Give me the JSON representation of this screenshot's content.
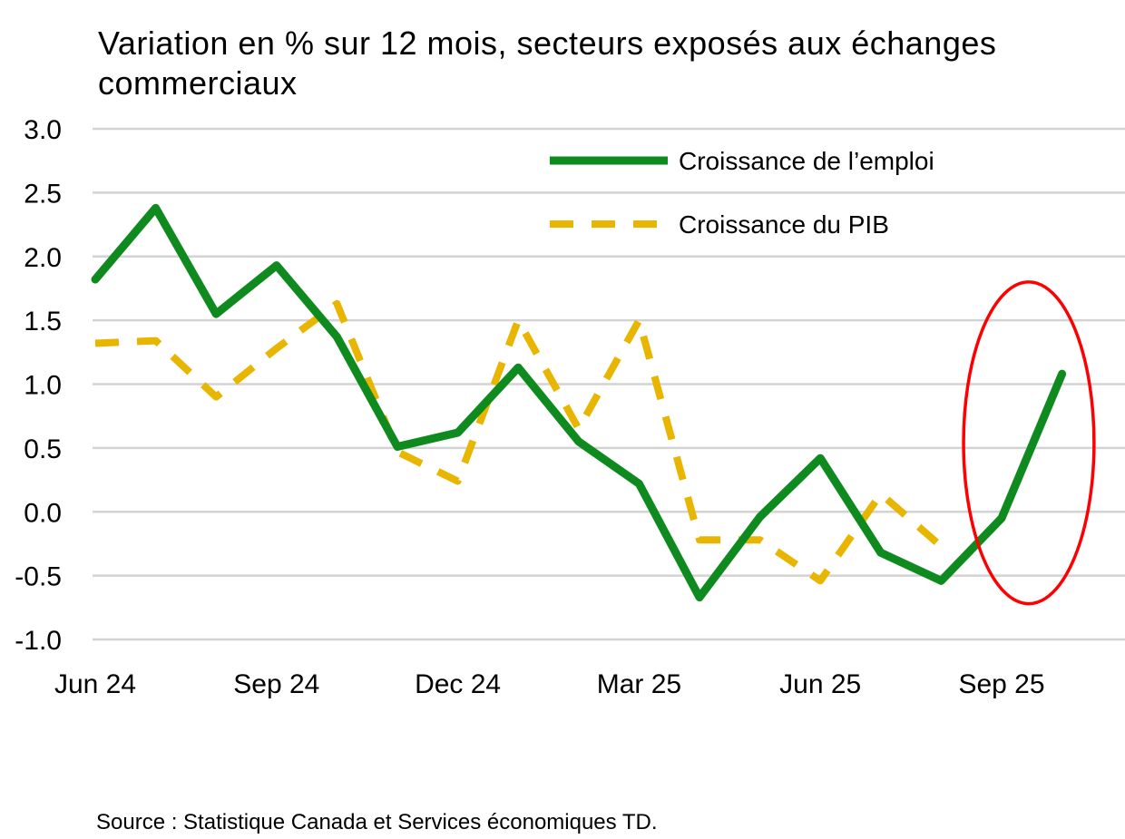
{
  "chart_data": {
    "type": "line",
    "title": "Variation en % sur 12 mois, secteurs exposés aux échanges commerciaux",
    "xlabel": "",
    "ylabel": "",
    "x_tick_labels": [
      "Jun 24",
      "Sep 24",
      "Dec 24",
      "Mar 25",
      "Jun 25",
      "Sep 25"
    ],
    "x_tick_positions": [
      0,
      3,
      6,
      9,
      12,
      15
    ],
    "y_tick_labels": [
      "3.0",
      "2.5",
      "2.0",
      "1.5",
      "1.0",
      "0.5",
      "0.0",
      "-0.5",
      "-1.0"
    ],
    "ylim": [
      -1.0,
      3.0
    ],
    "grid": true,
    "legend_placement": "top-right",
    "series": [
      {
        "name": "Croissance de l’emploi",
        "color": "#0f8a1e",
        "style": "solid",
        "values": [
          1.82,
          2.38,
          1.55,
          1.93,
          1.37,
          0.51,
          0.62,
          1.13,
          0.55,
          0.22,
          -0.67,
          -0.04,
          0.42,
          -0.32,
          -0.54,
          -0.05,
          1.08
        ]
      },
      {
        "name": "Croissance du PIB",
        "color": "#e8b600",
        "style": "dashed",
        "values": [
          1.32,
          1.34,
          0.9,
          1.28,
          1.63,
          0.47,
          0.24,
          1.5,
          0.65,
          1.5,
          -0.22,
          -0.22,
          -0.54,
          0.14,
          -0.27
        ]
      }
    ],
    "annotations": [
      {
        "type": "ellipse",
        "color": "#ff0000",
        "x_center": 15.45,
        "y_center": 0.54,
        "x_halfwidth": 1.08,
        "y_halfwidth": 1.26
      }
    ]
  },
  "source": "Source : Statistique Canada et Services économiques TD."
}
